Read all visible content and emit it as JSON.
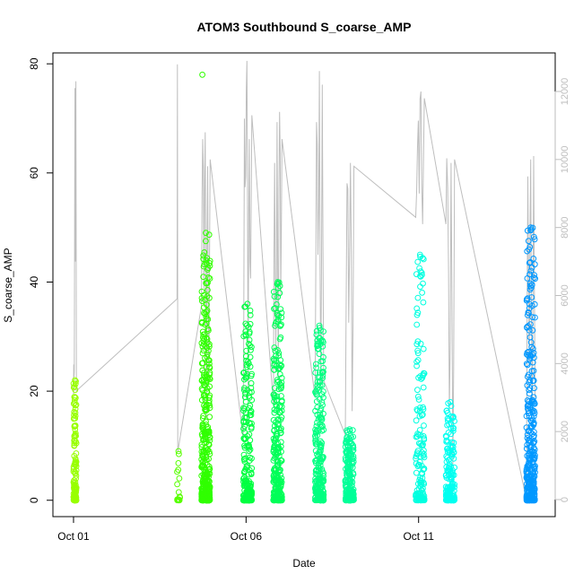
{
  "chart_data": {
    "type": "scatter",
    "title": "ATOM3 Southbound S_coarse_AMP",
    "xlabel": "Date",
    "ylabel": "S_coarse_AMP",
    "xlim": [
      "2016-09-30T09:40",
      "2016-10-14T23:00"
    ],
    "ylim": [
      -3,
      82
    ],
    "x_ticks": [
      {
        "date": "2016-10-01T00:00",
        "label": "Oct 01"
      },
      {
        "date": "2016-10-06T00:00",
        "label": "Oct 06"
      },
      {
        "date": "2016-10-11T00:00",
        "label": "Oct 11"
      }
    ],
    "y_ticks": [
      0,
      20,
      40,
      60,
      80
    ],
    "y2_ticks": [
      0,
      2000,
      4000,
      6000,
      8000,
      10000,
      12000
    ],
    "y2_range": [
      0,
      12000
    ],
    "y2_color": "#bebebe",
    "marker": "open-circle",
    "grid": false,
    "legend": "none",
    "clusters": [
      {
        "start": "2016-10-01T00:00",
        "end": "2016-10-01T02:00",
        "color": "#98ff00",
        "max": 22,
        "n": 140
      },
      {
        "start": "2016-10-04T00:00",
        "end": "2016-10-04T02:00",
        "color": "#58ff00",
        "max": 9,
        "n": 20
      },
      {
        "start": "2016-10-04T17:00",
        "end": "2016-10-04T23:00",
        "color": "#30ff00",
        "max": 49,
        "n": 420,
        "outlier": 78
      },
      {
        "start": "2016-10-05T22:00",
        "end": "2016-10-06T04:00",
        "color": "#00ff40",
        "max": 36,
        "n": 260
      },
      {
        "start": "2016-10-06T19:00",
        "end": "2016-10-07T01:00",
        "color": "#00ff58",
        "max": 40,
        "n": 300
      },
      {
        "start": "2016-10-08T00:00",
        "end": "2016-10-08T06:00",
        "color": "#00ff80",
        "max": 32,
        "n": 280
      },
      {
        "start": "2016-10-08T21:00",
        "end": "2016-10-09T03:00",
        "color": "#00ff98",
        "max": 13,
        "n": 240
      },
      {
        "start": "2016-10-10T22:00",
        "end": "2016-10-11T04:00",
        "color": "#00ffe0",
        "max": 45,
        "n": 160
      },
      {
        "start": "2016-10-11T19:00",
        "end": "2016-10-12T01:00",
        "color": "#00fff0",
        "max": 18,
        "n": 200
      },
      {
        "start": "2016-10-14T03:00",
        "end": "2016-10-14T09:00",
        "color": "#0098ff",
        "max": 50,
        "n": 360
      }
    ],
    "secondary_series": {
      "color": "#bebebe",
      "segments": [
        {
          "start": "2016-10-01T00:00",
          "end": "2016-10-01T02:00",
          "values": [
            3100,
            3600,
            5500,
            12100,
            7000,
            12300,
            3200
          ]
        },
        {
          "start": "2016-10-04T00:00",
          "end": "2016-10-04T00:30",
          "values": [
            5900,
            12800,
            1400
          ]
        },
        {
          "start": "2016-10-04T17:00",
          "end": "2016-10-04T23:00",
          "values": [
            5700,
            10600,
            6200,
            10800,
            2400,
            9800,
            3500,
            10000
          ]
        },
        {
          "start": "2016-10-05T22:00",
          "end": "2016-10-06T04:00",
          "values": [
            1800,
            11200,
            9500,
            12900,
            3000,
            10600,
            6500,
            11300
          ]
        },
        {
          "start": "2016-10-06T19:00",
          "end": "2016-10-07T01:00",
          "values": [
            2800,
            9900,
            4400,
            11100,
            3500,
            11400,
            6000,
            10600
          ]
        },
        {
          "start": "2016-10-08T00:00",
          "end": "2016-10-08T06:00",
          "values": [
            3000,
            11100,
            7200,
            12600,
            3400,
            12200,
            3500
          ]
        },
        {
          "start": "2016-10-08T21:00",
          "end": "2016-10-09T03:00",
          "values": [
            1900,
            9300,
            5200,
            9900,
            2600,
            9800
          ]
        },
        {
          "start": "2016-10-10T22:00",
          "end": "2016-10-11T04:00",
          "values": [
            8300,
            10300,
            9000,
            12000,
            8100,
            11800
          ]
        },
        {
          "start": "2016-10-11T19:00",
          "end": "2016-10-12T01:00",
          "values": [
            8100,
            9200,
            2600,
            9900,
            1000,
            10000
          ]
        },
        {
          "start": "2016-10-14T03:00",
          "end": "2016-10-14T09:00",
          "values": [
            0,
            9500,
            4000,
            10000,
            2500,
            10100,
            3000
          ]
        }
      ]
    }
  }
}
